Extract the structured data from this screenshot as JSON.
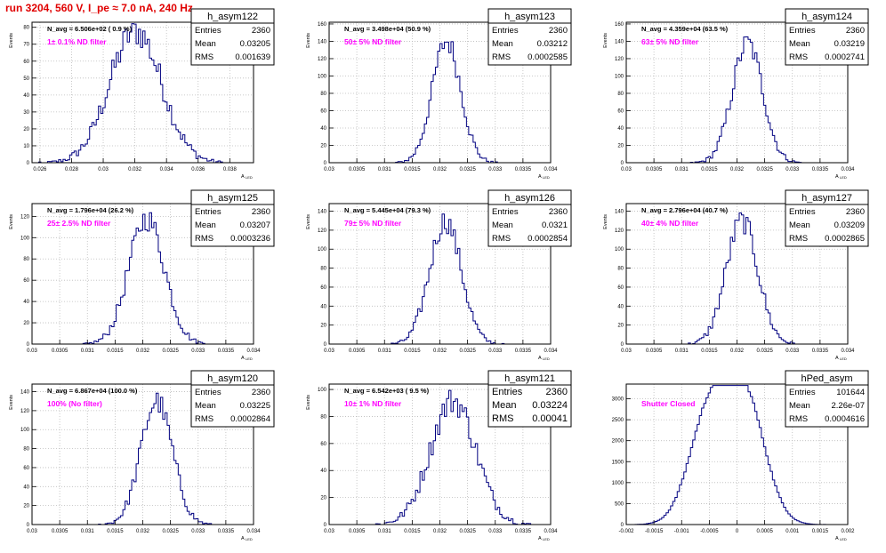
{
  "title": "run 3204,   560 V, I_pe ≈ 7.0 nA, 240 Hz",
  "colors": {
    "hist": "#000080",
    "label": "#ff00ff",
    "title": "#e00000",
    "grid": "#bbbbbb"
  },
  "chart_data": [
    {
      "type": "histogram",
      "name": "h_asym122",
      "navg": "N_avg = 6.506e+02 ( 0.9 %)",
      "label": "1± 0.1% ND filter",
      "stats": [
        [
          "Entries",
          "2360"
        ],
        [
          "Mean",
          "0.03205"
        ],
        [
          "RMS",
          "0.001639"
        ]
      ],
      "ylabel": "Events",
      "xlabel": "A",
      "xlabel_sub": "LED",
      "xlim": [
        0.0255,
        0.0395
      ],
      "ylim": [
        0,
        83
      ],
      "xticks": [
        "0.026",
        "0.028",
        "0.03",
        "0.032",
        "0.034",
        "0.036",
        "0.038"
      ],
      "xtick_vals": [
        0.026,
        0.028,
        0.03,
        0.032,
        0.034,
        0.036,
        0.038
      ],
      "yticks": [
        "0",
        "10",
        "20",
        "30",
        "40",
        "50",
        "60",
        "70",
        "80"
      ],
      "ytick_vals": [
        0,
        10,
        20,
        30,
        40,
        50,
        60,
        70,
        80
      ],
      "shape": {
        "kind": "gauss",
        "center": 0.03205,
        "sigma": 0.00164,
        "peak": 78
      }
    },
    {
      "type": "histogram",
      "name": "h_asym123",
      "navg": "N_avg = 3.498e+04 (50.9 %)",
      "label": "50± 5% ND filter",
      "stats": [
        [
          "Entries",
          "2360"
        ],
        [
          "Mean",
          "0.03212"
        ],
        [
          "RMS",
          "0.0002585"
        ]
      ],
      "ylabel": "Events",
      "xlabel": "A",
      "xlabel_sub": "LED",
      "xlim": [
        0.03,
        0.034
      ],
      "ylim": [
        0,
        162
      ],
      "xticks": [
        "0.03",
        "0.0305",
        "0.031",
        "0.0315",
        "0.032",
        "0.0325",
        "0.033",
        "0.0335",
        "0.034"
      ],
      "xtick_vals": [
        0.03,
        0.0305,
        0.031,
        0.0315,
        0.032,
        0.0325,
        0.033,
        0.0335,
        0.034
      ],
      "yticks": [
        "0",
        "20",
        "40",
        "60",
        "80",
        "100",
        "120",
        "140",
        "160"
      ],
      "ytick_vals": [
        0,
        20,
        40,
        60,
        80,
        100,
        120,
        140,
        160
      ],
      "shape": {
        "kind": "gauss",
        "center": 0.03212,
        "sigma": 0.000258,
        "peak": 140
      }
    },
    {
      "type": "histogram",
      "name": "h_asym124",
      "navg": "N_avg = 4.359e+04 (63.5 %)",
      "label": "63± 5% ND filter",
      "stats": [
        [
          "Entries",
          "2360"
        ],
        [
          "Mean",
          "0.03219"
        ],
        [
          "RMS",
          "0.0002741"
        ]
      ],
      "ylabel": "Events",
      "xlabel": "A",
      "xlabel_sub": "LED",
      "xlim": [
        0.03,
        0.034
      ],
      "ylim": [
        0,
        162
      ],
      "xticks": [
        "0.03",
        "0.0305",
        "0.031",
        "0.0315",
        "0.032",
        "0.0325",
        "0.033",
        "0.0335",
        "0.034"
      ],
      "xtick_vals": [
        0.03,
        0.0305,
        0.031,
        0.0315,
        0.032,
        0.0325,
        0.033,
        0.0335,
        0.034
      ],
      "yticks": [
        "0",
        "20",
        "40",
        "60",
        "80",
        "100",
        "120",
        "140",
        "160"
      ],
      "ytick_vals": [
        0,
        20,
        40,
        60,
        80,
        100,
        120,
        140,
        160
      ],
      "shape": {
        "kind": "gauss",
        "center": 0.03219,
        "sigma": 0.000274,
        "peak": 138
      }
    },
    {
      "type": "histogram",
      "name": "h_asym125",
      "navg": "N_avg = 1.796e+04 (26.2 %)",
      "label": "25± 2.5% ND filter",
      "stats": [
        [
          "Entries",
          "2360"
        ],
        [
          "Mean",
          "0.03207"
        ],
        [
          "RMS",
          "0.0003236"
        ]
      ],
      "ylabel": "Events",
      "xlabel": "A",
      "xlabel_sub": "LED",
      "xlim": [
        0.03,
        0.034
      ],
      "ylim": [
        0,
        132
      ],
      "xticks": [
        "0.03",
        "0.0305",
        "0.031",
        "0.0315",
        "0.032",
        "0.0325",
        "0.033",
        "0.0335",
        "0.034"
      ],
      "xtick_vals": [
        0.03,
        0.0305,
        0.031,
        0.0315,
        0.032,
        0.0325,
        0.033,
        0.0335,
        0.034
      ],
      "yticks": [
        "0",
        "20",
        "40",
        "60",
        "80",
        "100",
        "120"
      ],
      "ytick_vals": [
        0,
        20,
        40,
        60,
        80,
        100,
        120
      ],
      "shape": {
        "kind": "gauss",
        "center": 0.03207,
        "sigma": 0.000324,
        "peak": 118
      }
    },
    {
      "type": "histogram",
      "name": "h_asym126",
      "navg": "N_avg = 5.445e+04 (79.3 %)",
      "label": "79± 5% ND filter",
      "stats": [
        [
          "Entries",
          "2360"
        ],
        [
          "Mean",
          "0.0321"
        ],
        [
          "RMS",
          "0.0002854"
        ]
      ],
      "ylabel": "Events",
      "xlabel": "A",
      "xlabel_sub": "LED",
      "xlim": [
        0.03,
        0.034
      ],
      "ylim": [
        0,
        148
      ],
      "xticks": [
        "0.03",
        "0.0305",
        "0.031",
        "0.0315",
        "0.032",
        "0.0325",
        "0.033",
        "0.0335",
        "0.034"
      ],
      "xtick_vals": [
        0.03,
        0.0305,
        0.031,
        0.0315,
        0.032,
        0.0325,
        0.033,
        0.0335,
        0.034
      ],
      "yticks": [
        "0",
        "20",
        "40",
        "60",
        "80",
        "100",
        "120",
        "140"
      ],
      "ytick_vals": [
        0,
        20,
        40,
        60,
        80,
        100,
        120,
        140
      ],
      "shape": {
        "kind": "gauss",
        "center": 0.0321,
        "sigma": 0.000285,
        "peak": 130
      }
    },
    {
      "type": "histogram",
      "name": "h_asym127",
      "navg": "N_avg = 2.796e+04 (40.7 %)",
      "label": "40± 4% ND filter",
      "stats": [
        [
          "Entries",
          "2360"
        ],
        [
          "Mean",
          "0.03209"
        ],
        [
          "RMS",
          "0.0002865"
        ]
      ],
      "ylabel": "Events",
      "xlabel": "A",
      "xlabel_sub": "LED",
      "xlim": [
        0.03,
        0.034
      ],
      "ylim": [
        0,
        148
      ],
      "xticks": [
        "0.03",
        "0.0305",
        "0.031",
        "0.0315",
        "0.032",
        "0.0325",
        "0.033",
        "0.0335",
        "0.034"
      ],
      "xtick_vals": [
        0.03,
        0.0305,
        0.031,
        0.0315,
        0.032,
        0.0325,
        0.033,
        0.0335,
        0.034
      ],
      "yticks": [
        "0",
        "20",
        "40",
        "60",
        "80",
        "100",
        "120",
        "140"
      ],
      "ytick_vals": [
        0,
        20,
        40,
        60,
        80,
        100,
        120,
        140
      ],
      "shape": {
        "kind": "gauss",
        "center": 0.03209,
        "sigma": 0.000287,
        "peak": 130
      }
    },
    {
      "type": "histogram",
      "name": "h_asym120",
      "navg": "N_avg = 6.867e+04 (100.0 %)",
      "label": "100% (No filter)",
      "stats": [
        [
          "Entries",
          "2360"
        ],
        [
          "Mean",
          "0.03225"
        ],
        [
          "RMS",
          "0.0002864"
        ]
      ],
      "ylabel": "Events",
      "xlabel": "A",
      "xlabel_sub": "LED",
      "xlim": [
        0.03,
        0.034
      ],
      "ylim": [
        0,
        148
      ],
      "xticks": [
        "0.03",
        "0.0305",
        "0.031",
        "0.0315",
        "0.032",
        "0.0325",
        "0.033",
        "0.0335",
        "0.034"
      ],
      "xtick_vals": [
        0.03,
        0.0305,
        0.031,
        0.0315,
        0.032,
        0.0325,
        0.033,
        0.0335,
        0.034
      ],
      "yticks": [
        "0",
        "20",
        "40",
        "60",
        "80",
        "100",
        "120",
        "140"
      ],
      "ytick_vals": [
        0,
        20,
        40,
        60,
        80,
        100,
        120,
        140
      ],
      "shape": {
        "kind": "gauss",
        "center": 0.03225,
        "sigma": 0.000286,
        "peak": 130
      }
    },
    {
      "type": "histogram",
      "name": "h_asym121",
      "navg": "N_avg = 6.542e+03 ( 9.5 %)",
      "label": "10± 1% ND filter",
      "stats": [
        [
          "Entries",
          "2360"
        ],
        [
          "Mean",
          "0.03224"
        ],
        [
          "RMS",
          "0.00041"
        ]
      ],
      "stats_large": true,
      "ylabel": "Events",
      "xlabel": "A",
      "xlabel_sub": "LED",
      "xlim": [
        0.03,
        0.034
      ],
      "ylim": [
        0,
        104
      ],
      "xticks": [
        "0.03",
        "0.0305",
        "0.031",
        "0.0315",
        "0.032",
        "0.0325",
        "0.033",
        "0.0335",
        "0.034"
      ],
      "xtick_vals": [
        0.03,
        0.0305,
        0.031,
        0.0315,
        0.032,
        0.0325,
        0.033,
        0.0335,
        0.034
      ],
      "yticks": [
        "0",
        "20",
        "40",
        "60",
        "80",
        "100"
      ],
      "ytick_vals": [
        0,
        20,
        40,
        60,
        80,
        100
      ],
      "shape": {
        "kind": "gauss",
        "center": 0.03224,
        "sigma": 0.00041,
        "peak": 92
      }
    },
    {
      "type": "histogram",
      "name": "hPed_asym",
      "navg": "",
      "label": "Shutter Closed",
      "stats": [
        [
          "Entries",
          "101644"
        ],
        [
          "Mean",
          "2.26e-07"
        ],
        [
          "RMS",
          "0.0004616"
        ]
      ],
      "ylabel": "",
      "xlabel": "A",
      "xlabel_sub": "LED",
      "xlim": [
        -0.002,
        0.002
      ],
      "ylim": [
        0,
        3350
      ],
      "xticks": [
        "-0.002",
        "-0.0015",
        "-0.001",
        "-0.0005",
        "0",
        "0.0005",
        "0.001",
        "0.0015",
        "0.002"
      ],
      "xtick_vals": [
        -0.002,
        -0.0015,
        -0.001,
        -0.0005,
        0,
        0.0005,
        0.001,
        0.0015,
        0.002
      ],
      "yticks": [
        "0",
        "500",
        "1000",
        "1500",
        "2000",
        "2500",
        "3000"
      ],
      "ytick_vals": [
        0,
        500,
        1000,
        1500,
        2000,
        2500,
        3000
      ],
      "shape": {
        "kind": "double",
        "c1": -0.0005,
        "c2": 0.00015,
        "sigma": 0.00036,
        "a1": 2600,
        "a2": 2900
      }
    }
  ]
}
